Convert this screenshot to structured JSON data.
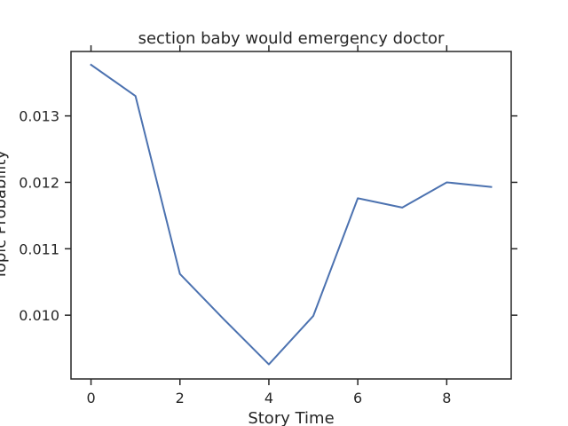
{
  "chart_data": {
    "type": "line",
    "title": "section baby would emergency doctor",
    "xlabel": "Story Time",
    "ylabel": "Topic Probability",
    "x": [
      0,
      1,
      2,
      3,
      4,
      5,
      6,
      7,
      8,
      9
    ],
    "series": [
      {
        "values": [
          0.01377,
          0.0133,
          0.01062,
          0.00993,
          0.00926,
          0.00999,
          0.01176,
          0.01162,
          0.012,
          0.01193
        ],
        "color": "#4c72b0"
      }
    ],
    "xlim": [
      -0.45,
      9.45
    ],
    "ylim": [
      0.00904,
      0.01397
    ],
    "xticks": [
      0,
      2,
      4,
      6,
      8
    ],
    "xtick_labels": [
      "0",
      "2",
      "4",
      "6",
      "8"
    ],
    "yticks": [
      0.01,
      0.011,
      0.012,
      0.013
    ],
    "ytick_labels": [
      "0.010",
      "0.011",
      "0.012",
      "0.013"
    ],
    "grid": false,
    "legend": "none"
  }
}
